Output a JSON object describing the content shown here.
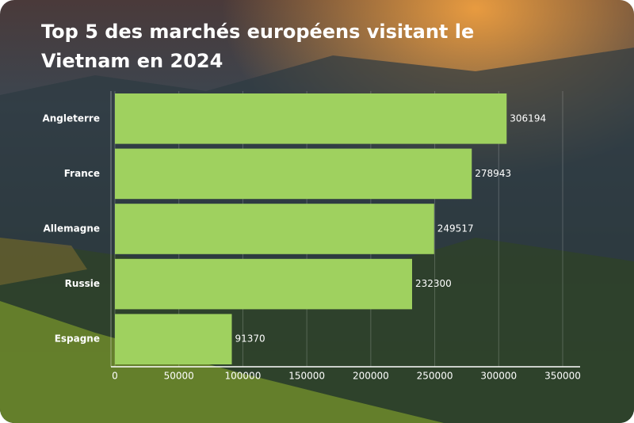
{
  "chart_data": {
    "type": "barh",
    "title": "Top 5 des marchés européens visitant le Vietnam en 2024",
    "categories": [
      "Angleterre",
      "France",
      "Allemagne",
      "Russie",
      "Espagne"
    ],
    "values": [
      306194,
      278943,
      249517,
      232300,
      91370
    ],
    "color": "#9fd15f",
    "xlim": [
      0,
      350000
    ],
    "xticks": [
      0,
      50000,
      100000,
      150000,
      200000,
      250000,
      300000,
      350000
    ],
    "grid": true
  }
}
